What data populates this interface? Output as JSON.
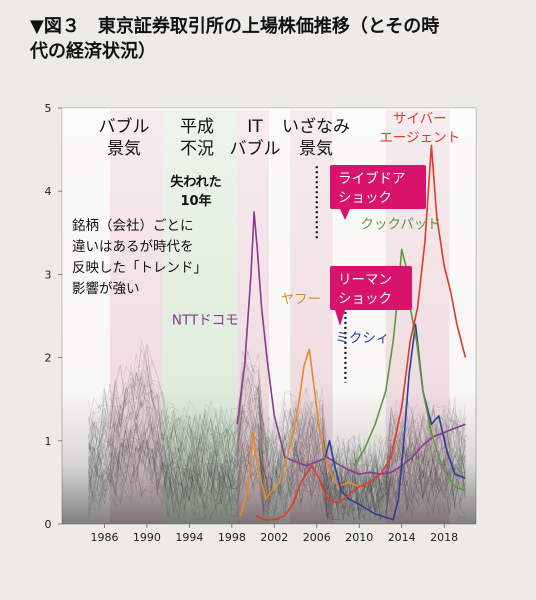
{
  "figure": {
    "title_line1": "▼図３　東京証券取引所の上場株価推移（とその時",
    "title_line2": "代の経済状況）"
  },
  "chart_data": {
    "type": "line",
    "xlim": [
      1982,
      2021
    ],
    "ylim": [
      0,
      5
    ],
    "x_ticks": [
      "1986",
      "1990",
      "1994",
      "1998",
      "2002",
      "2006",
      "2010",
      "2014",
      "2018"
    ],
    "x_tick_values": [
      1986,
      1990,
      1994,
      1998,
      2002,
      2006,
      2010,
      2014,
      2018
    ],
    "y_ticks": [
      "0",
      "1",
      "2",
      "3",
      "4",
      "5"
    ],
    "y_tick_values": [
      0,
      1,
      2,
      3,
      4,
      5
    ],
    "grid": false,
    "periods": [
      {
        "label1": "バブル",
        "label2": "景気",
        "x0": 1986.5,
        "x1": 1991.5,
        "color": "#e8c9d3"
      },
      {
        "label1": "平成",
        "label2": "不況",
        "x0": 1991.5,
        "x1": 1998.5,
        "color": "#cde3c8"
      },
      {
        "label1": "IT",
        "label2": "バブル",
        "x0": 1998.5,
        "x1": 2001.5,
        "color": "#e8c9d3"
      },
      {
        "label1": "いざなみ",
        "label2": "景気",
        "x0": 2003.5,
        "x1": 2007.5,
        "color": "#e8c9d3"
      },
      {
        "label1": "",
        "label2": "",
        "x0": 2012.5,
        "x1": 2018.5,
        "color": "#e8c9d3"
      }
    ],
    "annotations": {
      "lost_decade": "失われた\n10年",
      "note": "銘柄（会社）ごとに\n違いはあるが時代を\n反映した「トレンド」\n影響が強い",
      "livedoor": "ライブドア\nショック",
      "lehman": "リーマン\nショック"
    },
    "callout_lines": [
      {
        "x": 2006.0,
        "y_top": 4.3,
        "y_bottom": 3.4
      },
      {
        "x": 2008.7,
        "y_top": 2.85,
        "y_bottom": 1.7
      }
    ],
    "series": [
      {
        "name": "NTTドコモ",
        "color": "#8a3a8f",
        "label_x": 1995.5,
        "label_y": 2.4,
        "x": [
          1998.5,
          1999.2,
          1999.8,
          2000.1,
          2000.4,
          2000.8,
          2001.3,
          2002,
          2003,
          2004,
          2005,
          2006,
          2007,
          2008,
          2009,
          2010,
          2011,
          2012,
          2013,
          2014,
          2015,
          2016,
          2017,
          2018,
          2019,
          2020
        ],
        "y": [
          1.2,
          1.9,
          3.0,
          3.75,
          3.3,
          2.6,
          2.0,
          1.3,
          0.8,
          0.75,
          0.7,
          0.75,
          0.8,
          0.72,
          0.65,
          0.6,
          0.62,
          0.6,
          0.62,
          0.7,
          0.8,
          0.95,
          1.05,
          1.1,
          1.15,
          1.2
        ]
      },
      {
        "name": "ヤフー",
        "color": "#e58a2a",
        "label_x": 2004.5,
        "label_y": 2.65,
        "x": [
          1998.8,
          1999.3,
          1999.7,
          2000.0,
          2000.3,
          2000.8,
          2001.2,
          2001.8,
          2002.5,
          2003.2,
          2003.8,
          2004.3,
          2004.8,
          2005.3,
          2005.8,
          2006.3,
          2007,
          2008,
          2009,
          2010
        ],
        "y": [
          0.1,
          0.3,
          0.6,
          1.1,
          0.8,
          0.5,
          0.3,
          0.4,
          0.5,
          0.8,
          1.1,
          1.45,
          1.9,
          2.1,
          1.6,
          1.1,
          0.7,
          0.45,
          0.5,
          0.45
        ]
      },
      {
        "name": "ミクシィ",
        "color": "#2a3f9e",
        "label_x": 2010.3,
        "label_y": 2.18,
        "x": [
          2006.8,
          2007.2,
          2007.7,
          2008.3,
          2009,
          2009.8,
          2010.5,
          2011.5,
          2012.5,
          2013.2,
          2013.7,
          2014.2,
          2014.7,
          2015.3,
          2016,
          2016.8,
          2017.5,
          2018.2,
          2019,
          2020
        ],
        "y": [
          0.8,
          1.0,
          0.7,
          0.4,
          0.3,
          0.25,
          0.2,
          0.12,
          0.08,
          0.05,
          0.3,
          1.0,
          1.8,
          2.4,
          1.6,
          1.2,
          1.3,
          0.9,
          0.6,
          0.55
        ]
      },
      {
        "name": "クックパッド",
        "color": "#5a9a3a",
        "label_x": 2013.9,
        "label_y": 3.55,
        "x": [
          2009.5,
          2010.5,
          2011.5,
          2012.5,
          2013.2,
          2013.6,
          2014.0,
          2014.4,
          2014.8,
          2015.4,
          2016,
          2016.8,
          2017.5,
          2018.2,
          2019,
          2020
        ],
        "y": [
          0.7,
          0.9,
          1.2,
          1.6,
          2.2,
          2.7,
          3.3,
          3.1,
          2.6,
          2.2,
          1.6,
          1.1,
          0.8,
          0.6,
          0.45,
          0.4
        ]
      },
      {
        "name": "サイバー\nエージェント",
        "color": "#e03a2a",
        "label_x": 2015.7,
        "label_y": 4.82,
        "x": [
          2000.3,
          2001,
          2002,
          2003,
          2003.8,
          2004.5,
          2005.5,
          2006.2,
          2007,
          2008,
          2009,
          2010,
          2011,
          2012,
          2013,
          2014,
          2014.8,
          2015.5,
          2016.2,
          2016.8,
          2017.3,
          2018,
          2018.6,
          2019.2,
          2020
        ],
        "y": [
          0.1,
          0.05,
          0.05,
          0.1,
          0.25,
          0.5,
          0.7,
          0.55,
          0.3,
          0.25,
          0.35,
          0.45,
          0.5,
          0.6,
          0.8,
          1.4,
          2.2,
          2.6,
          3.4,
          4.55,
          3.7,
          3.1,
          2.8,
          2.4,
          2.0
        ]
      }
    ]
  }
}
